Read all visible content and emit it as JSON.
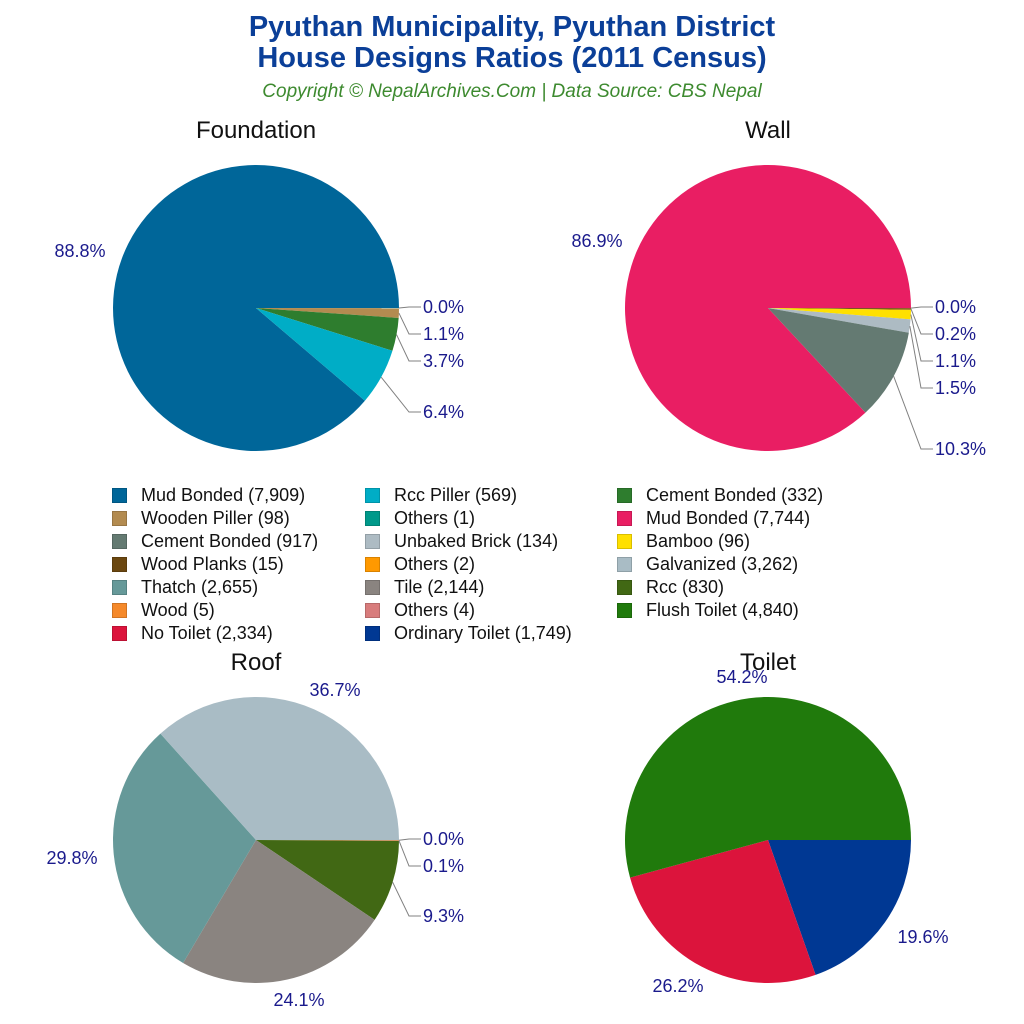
{
  "header": {
    "title_line1": "Pyuthan Municipality, Pyuthan District",
    "title_line2": "House Designs Ratios (2011 Census)",
    "subtitle": "Copyright © NepalArchives.Com | Data Source: CBS Nepal"
  },
  "colors": {
    "title": "#0b3f98",
    "subtitle": "#3d8a2f",
    "label": "#1a1a8c"
  },
  "legend": [
    {
      "label": "Mud Bonded (7,909)",
      "color": "#006699"
    },
    {
      "label": "Wooden Piller (98)",
      "color": "#b38b50"
    },
    {
      "label": "Cement Bonded (917)",
      "color": "#647a72"
    },
    {
      "label": "Wood Planks (15)",
      "color": "#6b4710"
    },
    {
      "label": "Thatch (2,655)",
      "color": "#669999"
    },
    {
      "label": "Wood (5)",
      "color": "#f5892a"
    },
    {
      "label": "No Toilet (2,334)",
      "color": "#dc143c"
    },
    {
      "label": "Rcc Piller (569)",
      "color": "#00adc6"
    },
    {
      "label": "Others (1)",
      "color": "#00998a"
    },
    {
      "label": "Unbaked Brick (134)",
      "color": "#adbbc3"
    },
    {
      "label": "Others (2)",
      "color": "#ff9900"
    },
    {
      "label": "Tile (2,144)",
      "color": "#8a8480"
    },
    {
      "label": "Others (4)",
      "color": "#d87c7c"
    },
    {
      "label": "Ordinary Toilet (1,749)",
      "color": "#003893"
    },
    {
      "label": "Cement Bonded (332)",
      "color": "#2e7d2e"
    },
    {
      "label": "Mud Bonded (7,744)",
      "color": "#e91e63"
    },
    {
      "label": "Bamboo (96)",
      "color": "#ffe000"
    },
    {
      "label": "Galvanized (3,262)",
      "color": "#a9bcc5"
    },
    {
      "label": "Rcc (830)",
      "color": "#416814"
    },
    {
      "label": "Flush Toilet (4,840)",
      "color": "#207a0c"
    }
  ],
  "chart_data": [
    {
      "type": "pie",
      "title": "Foundation",
      "categories": [
        "Mud Bonded",
        "Others",
        "Wooden Piller",
        "Cement Bonded",
        "Rcc Piller"
      ],
      "values": [
        7909,
        1,
        98,
        332,
        569
      ],
      "percent_labels": [
        "88.8%",
        "0.0%",
        "1.1%",
        "3.7%",
        "6.4%"
      ],
      "colors": [
        "#006699",
        "#00998a",
        "#b38b50",
        "#2e7d2e",
        "#00adc6"
      ]
    },
    {
      "type": "pie",
      "title": "Wall",
      "categories": [
        "Mud Bonded",
        "Others",
        "Wood Planks",
        "Bamboo",
        "Unbaked Brick",
        "Cement Bonded"
      ],
      "values": [
        7744,
        2,
        15,
        96,
        134,
        917
      ],
      "percent_labels": [
        "86.9%",
        "0.0%",
        "0.2%",
        "1.1%",
        "1.5%",
        "10.3%"
      ],
      "colors": [
        "#e91e63",
        "#ff9900",
        "#6b4710",
        "#ffe000",
        "#adbbc3",
        "#647a72"
      ]
    },
    {
      "type": "pie",
      "title": "Roof",
      "categories": [
        "Galvanized",
        "Thatch",
        "Tile",
        "Rcc",
        "Wood",
        "Others"
      ],
      "values": [
        3262,
        2655,
        2144,
        830,
        5,
        4
      ],
      "percent_labels": [
        "36.7%",
        "29.8%",
        "24.1%",
        "9.3%",
        "0.1%",
        "0.0%"
      ],
      "colors": [
        "#a9bcc5",
        "#669999",
        "#8a8480",
        "#416814",
        "#f5892a",
        "#d87c7c"
      ]
    },
    {
      "type": "pie",
      "title": "Toilet",
      "categories": [
        "Flush Toilet",
        "No Toilet",
        "Ordinary Toilet"
      ],
      "values": [
        4840,
        2334,
        1749
      ],
      "percent_labels": [
        "54.2%",
        "26.2%",
        "19.6%"
      ],
      "colors": [
        "#207a0c",
        "#dc143c",
        "#003893"
      ]
    }
  ]
}
